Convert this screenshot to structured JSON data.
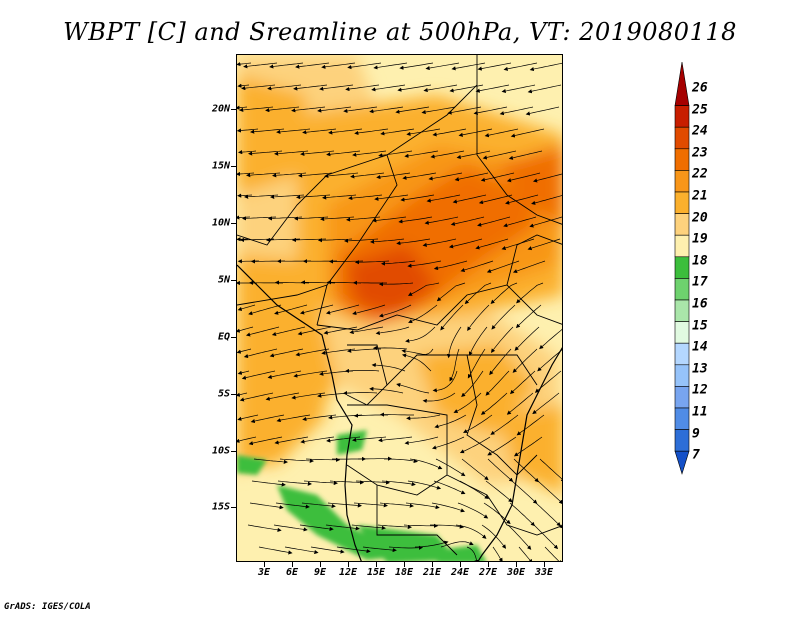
{
  "title": "WBPT [C] and Sreamline at 500hPa, VT: 2019080118",
  "footer": "GrADS: IGES/COLA",
  "lat_labels": [
    "20N",
    "15N",
    "10N",
    "5N",
    "EQ",
    "5S",
    "10S",
    "15S"
  ],
  "lon_labels": [
    "3E",
    "6E",
    "9E",
    "12E",
    "15E",
    "18E",
    "21E",
    "24E",
    "27E",
    "30E",
    "33E"
  ],
  "colorbar": {
    "levels": [
      "26",
      "25",
      "24",
      "23",
      "22",
      "21",
      "20",
      "19",
      "18",
      "17",
      "16",
      "15",
      "14",
      "13",
      "12",
      "11",
      "9",
      "7"
    ],
    "colors": [
      "#a50000",
      "#c81e00",
      "#e14b00",
      "#f06e00",
      "#f89619",
      "#fbb02d",
      "#fdd27d",
      "#fef0af",
      "#3cbe3c",
      "#6ed26e",
      "#aae6aa",
      "#e1fae1",
      "#b4d7ff",
      "#96c3fa",
      "#78a5f0",
      "#508ce6",
      "#2d6ed7",
      "#1450c8"
    ]
  },
  "colors": {
    "background": "#ffffff",
    "land": "#fef0af",
    "streamline": "#000000"
  }
}
